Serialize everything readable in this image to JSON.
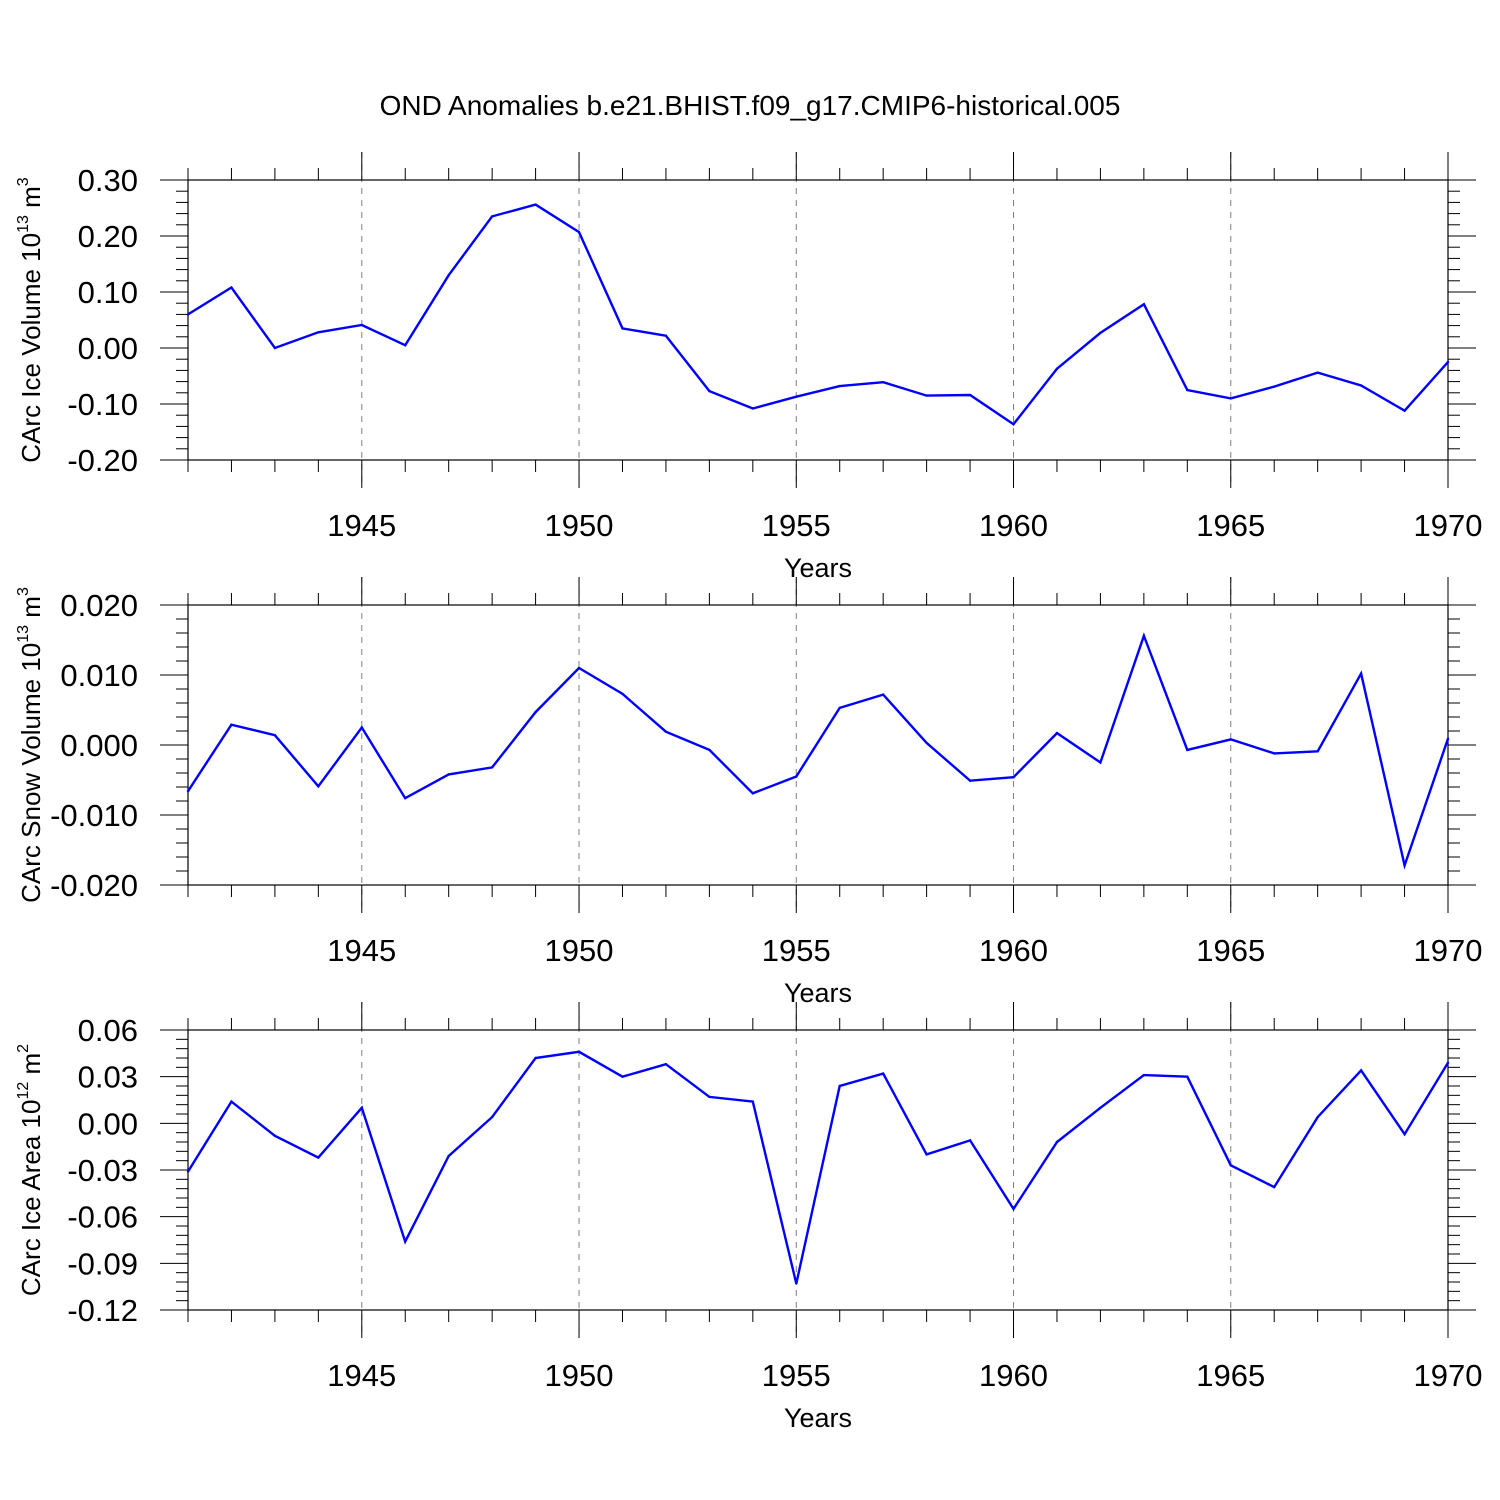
{
  "title": "OND Anomalies b.e21.BHIST.f09_g17.CMIP6-historical.005",
  "colors": {
    "series": "#0000ff",
    "axis": "#000000",
    "grid": "#808080"
  },
  "chart_data": [
    {
      "type": "line",
      "ylabel": {
        "text": "CArc Ice Volume 10",
        "sup": "13",
        "unit": " m",
        "unit_sup": "3"
      },
      "xlabel": "Years",
      "x": [
        1941,
        1942,
        1943,
        1944,
        1945,
        1946,
        1947,
        1948,
        1949,
        1950,
        1951,
        1952,
        1953,
        1954,
        1955,
        1956,
        1957,
        1958,
        1959,
        1960,
        1961,
        1962,
        1963,
        1964,
        1965,
        1966,
        1967,
        1968,
        1969,
        1970
      ],
      "values": [
        0.06,
        0.108,
        0.0,
        0.028,
        0.041,
        0.005,
        0.13,
        0.235,
        0.256,
        0.207,
        0.035,
        0.022,
        -0.077,
        -0.108,
        -0.087,
        -0.068,
        -0.061,
        -0.085,
        -0.084,
        -0.136,
        -0.037,
        0.027,
        0.078,
        -0.075,
        -0.09,
        -0.069,
        -0.044,
        -0.067,
        -0.112,
        -0.025
      ],
      "xlim": [
        1941,
        1970
      ],
      "ylim": [
        -0.2,
        0.3
      ],
      "yticks": [
        -0.2,
        -0.1,
        0.0,
        0.1,
        0.2,
        0.3
      ],
      "ytick_labels": [
        "-0.20",
        "-0.10",
        "0.00",
        "0.10",
        "0.20",
        "0.30"
      ],
      "xticks": [
        1945,
        1950,
        1955,
        1960,
        1965,
        1970
      ],
      "xtick_labels": [
        "1945",
        "1950",
        "1955",
        "1960",
        "1965",
        "1970"
      ],
      "grid": "vertical dashed at labeled years"
    },
    {
      "type": "line",
      "ylabel": {
        "text": "CArc Snow Volume 10",
        "sup": "13",
        "unit": " m",
        "unit_sup": "3"
      },
      "xlabel": "Years",
      "x": [
        1941,
        1942,
        1943,
        1944,
        1945,
        1946,
        1947,
        1948,
        1949,
        1950,
        1951,
        1952,
        1953,
        1954,
        1955,
        1956,
        1957,
        1958,
        1959,
        1960,
        1961,
        1962,
        1963,
        1964,
        1965,
        1966,
        1967,
        1968,
        1969,
        1970
      ],
      "values": [
        -0.0066,
        0.0029,
        0.0014,
        -0.0059,
        0.0025,
        -0.0076,
        -0.0042,
        -0.0032,
        0.0047,
        0.011,
        0.0073,
        0.0019,
        -0.0007,
        -0.0069,
        -0.0045,
        0.0053,
        0.0072,
        0.0003,
        -0.0051,
        -0.0046,
        0.0017,
        -0.0025,
        0.0156,
        -0.0007,
        0.0008,
        -0.0012,
        -0.0009,
        0.0102,
        -0.0172,
        0.0009
      ],
      "xlim": [
        1941,
        1970
      ],
      "ylim": [
        -0.02,
        0.02
      ],
      "yticks": [
        -0.02,
        -0.01,
        0.0,
        0.01,
        0.02
      ],
      "ytick_labels": [
        "-0.020",
        "-0.010",
        "0.000",
        "0.010",
        "0.020"
      ],
      "xticks": [
        1945,
        1950,
        1955,
        1960,
        1965,
        1970
      ],
      "xtick_labels": [
        "1945",
        "1950",
        "1955",
        "1960",
        "1965",
        "1970"
      ],
      "grid": "vertical dashed at labeled years"
    },
    {
      "type": "line",
      "ylabel": {
        "text": "CArc Ice Area 10",
        "sup": "12",
        "unit": " m",
        "unit_sup": "2"
      },
      "xlabel": "Years",
      "x": [
        1941,
        1942,
        1943,
        1944,
        1945,
        1946,
        1947,
        1948,
        1949,
        1950,
        1951,
        1952,
        1953,
        1954,
        1955,
        1956,
        1957,
        1958,
        1959,
        1960,
        1961,
        1962,
        1963,
        1964,
        1965,
        1966,
        1967,
        1968,
        1969,
        1970
      ],
      "values": [
        -0.031,
        0.014,
        -0.008,
        -0.022,
        0.01,
        -0.076,
        -0.021,
        0.004,
        0.042,
        0.046,
        0.03,
        0.038,
        0.017,
        0.014,
        -0.103,
        0.024,
        0.032,
        -0.02,
        -0.011,
        -0.055,
        -0.012,
        0.01,
        0.031,
        0.03,
        -0.027,
        -0.041,
        0.004,
        0.034,
        -0.007,
        0.039
      ],
      "xlim": [
        1941,
        1970
      ],
      "ylim": [
        -0.12,
        0.06
      ],
      "yticks": [
        -0.12,
        -0.09,
        -0.06,
        -0.03,
        0.0,
        0.03,
        0.06
      ],
      "ytick_labels": [
        "-0.12",
        "-0.09",
        "-0.06",
        "-0.03",
        "0.00",
        "0.03",
        "0.06"
      ],
      "xticks": [
        1945,
        1950,
        1955,
        1960,
        1965,
        1970
      ],
      "xtick_labels": [
        "1945",
        "1950",
        "1955",
        "1960",
        "1965",
        "1970"
      ],
      "grid": "vertical dashed at labeled years"
    }
  ]
}
